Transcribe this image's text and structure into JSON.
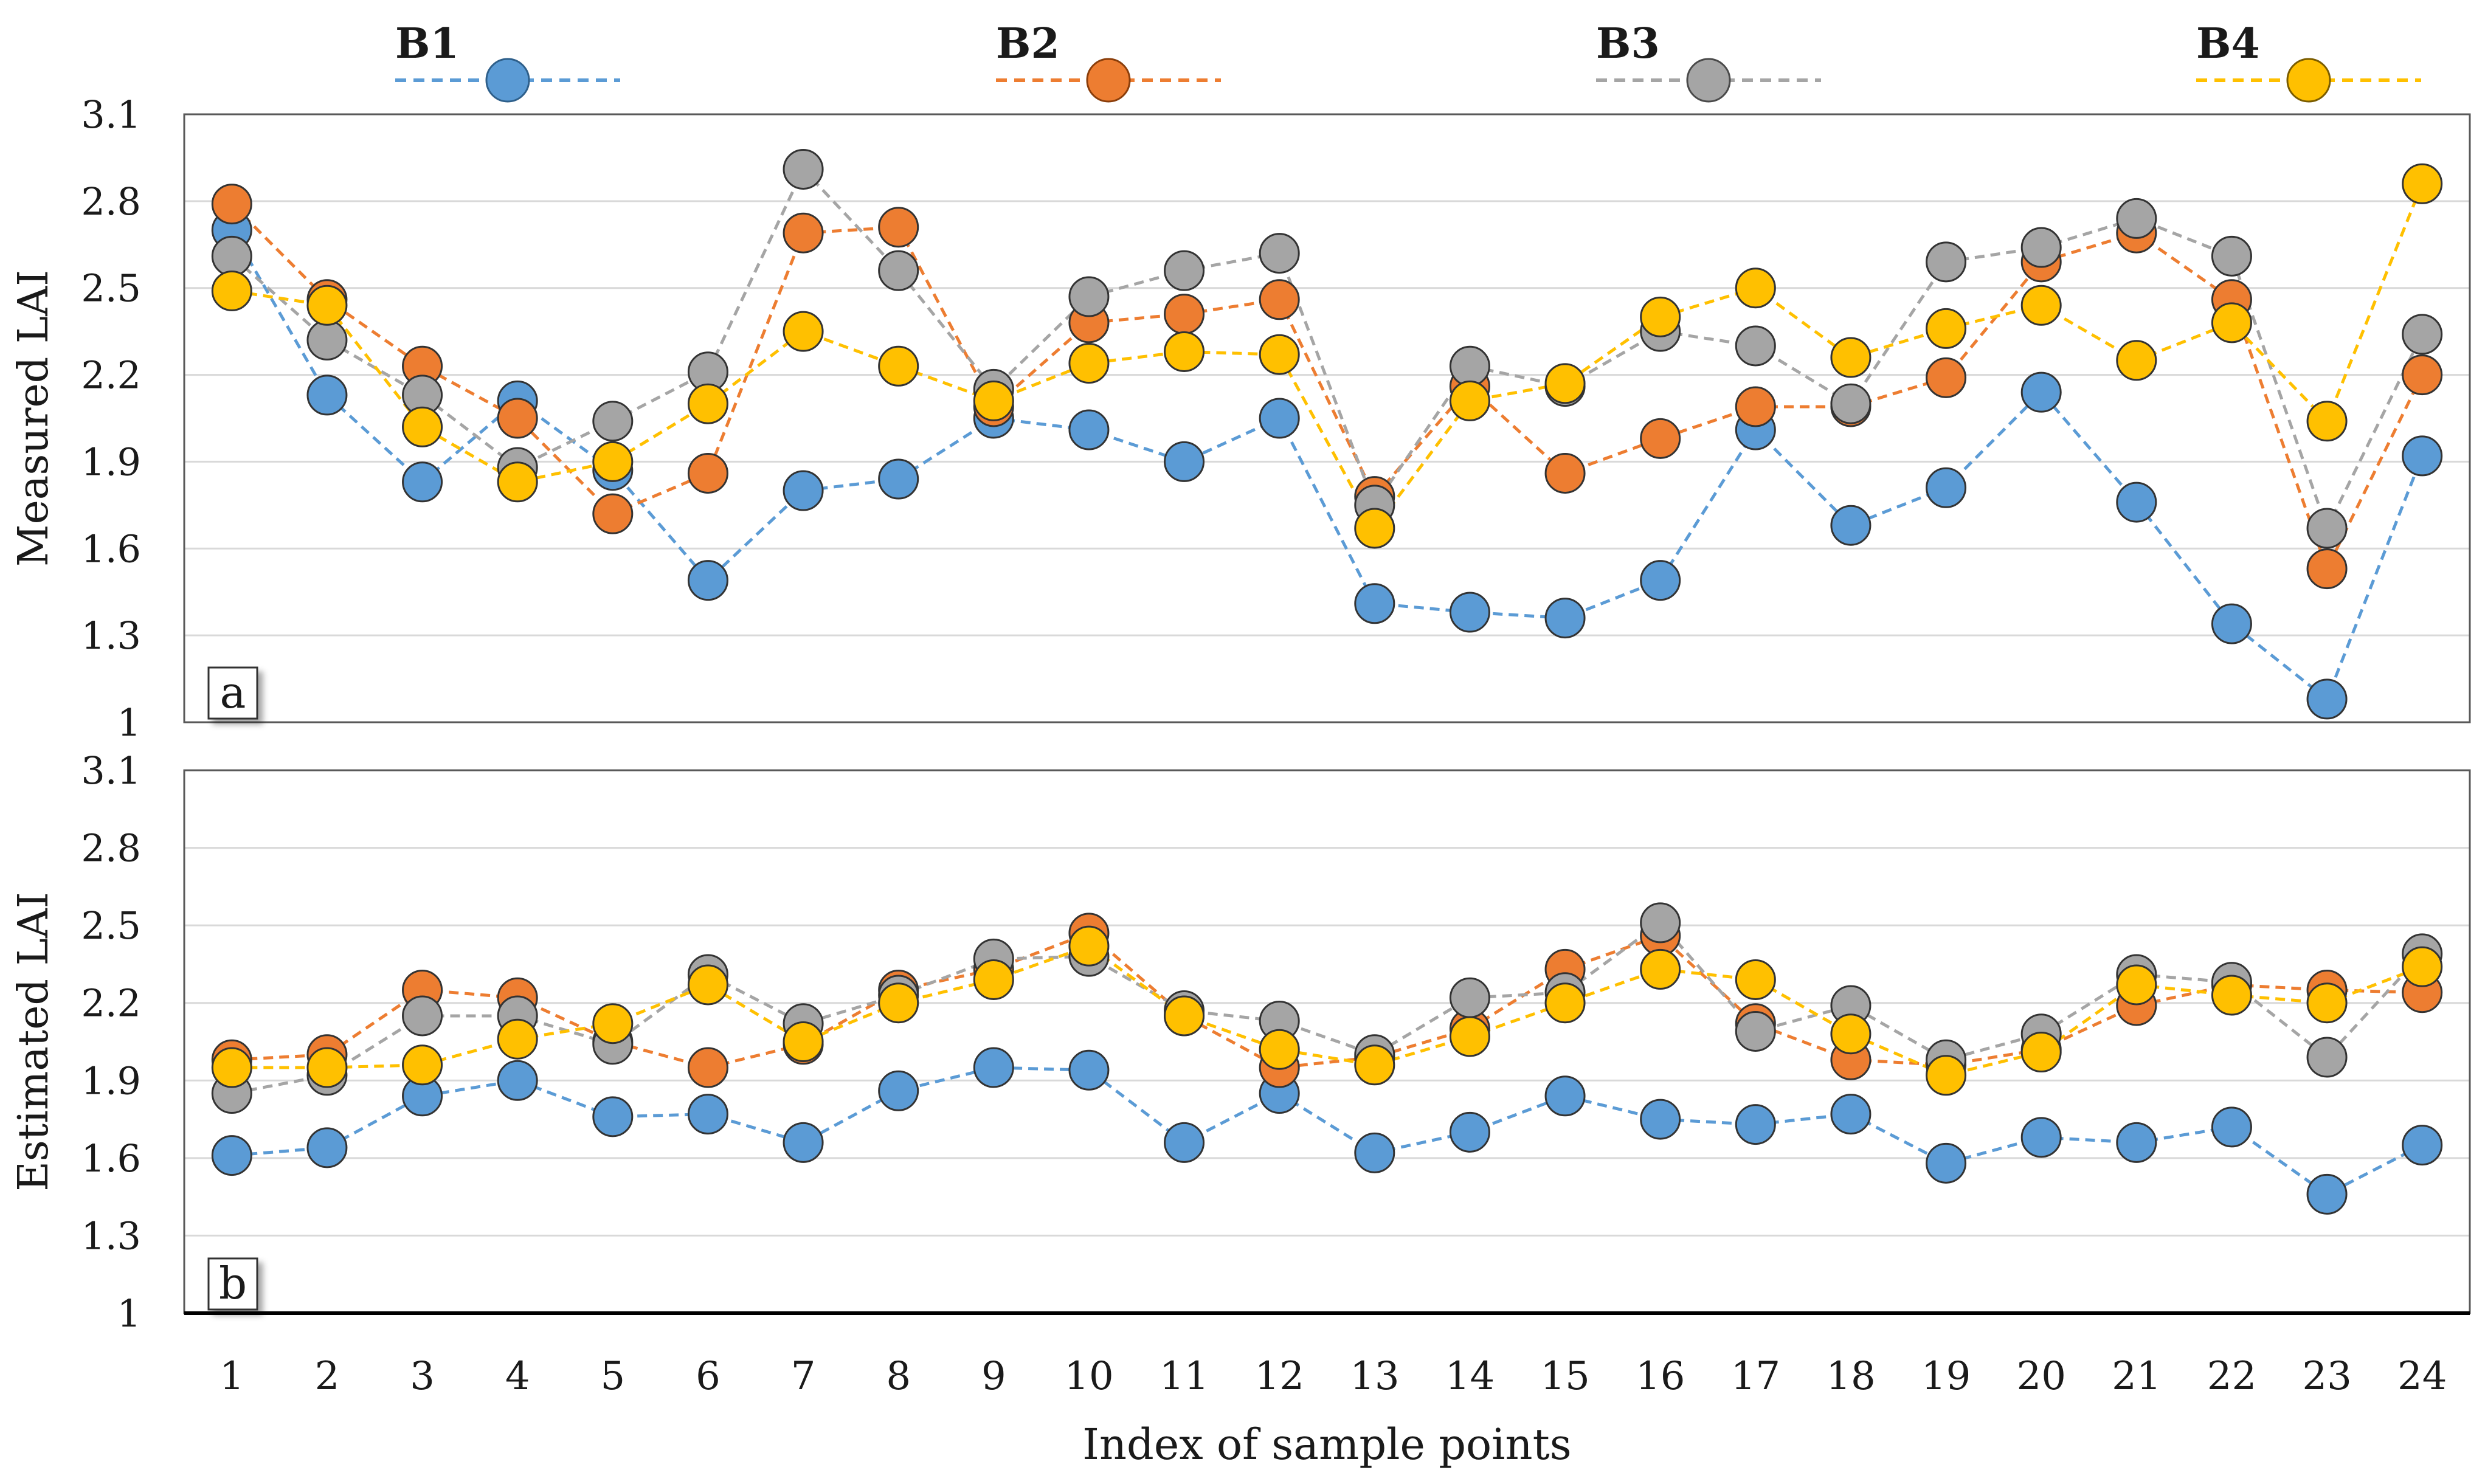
{
  "legend": [
    {
      "label": "B1",
      "color": "#5B9BD5",
      "marker_stroke": "#2E5F8A"
    },
    {
      "label": "B2",
      "color": "#ED7D31",
      "marker_stroke": "#8A3E0B"
    },
    {
      "label": "B3",
      "color": "#A5A5A5",
      "marker_stroke": "#4A4A4A"
    },
    {
      "label": "B4",
      "color": "#FFC000",
      "marker_stroke": "#7A5C00"
    }
  ],
  "xlabel": "Index of sample points",
  "chart_data": [
    {
      "type": "line",
      "panel_label": "a",
      "ylabel": "Measured LAI",
      "ylim": [
        1,
        3.1
      ],
      "yticks": [
        "1",
        "1.3",
        "1.6",
        "1.9",
        "2.2",
        "2.5",
        "2.8",
        "3.1"
      ],
      "categories": [
        1,
        2,
        3,
        4,
        5,
        6,
        7,
        8,
        9,
        10,
        11,
        12,
        13,
        14,
        15,
        16,
        17,
        18,
        19,
        20,
        21,
        22,
        23,
        24
      ],
      "series": [
        {
          "name": "B1",
          "values": [
            2.7,
            2.13,
            1.83,
            2.11,
            1.87,
            1.49,
            1.8,
            1.84,
            2.05,
            2.01,
            1.9,
            2.05,
            1.41,
            1.38,
            1.36,
            1.49,
            2.01,
            1.68,
            1.81,
            2.14,
            1.76,
            1.34,
            1.08,
            1.92
          ]
        },
        {
          "name": "B2",
          "values": [
            2.79,
            2.46,
            2.23,
            2.05,
            1.72,
            1.86,
            2.69,
            2.71,
            2.09,
            2.38,
            2.41,
            2.46,
            1.78,
            2.16,
            1.86,
            1.98,
            2.09,
            2.09,
            2.19,
            2.59,
            2.69,
            2.46,
            1.53,
            2.2
          ]
        },
        {
          "name": "B3",
          "values": [
            2.61,
            2.32,
            2.13,
            1.88,
            2.04,
            2.21,
            2.91,
            2.56,
            2.15,
            2.47,
            2.56,
            2.62,
            1.75,
            2.23,
            2.16,
            2.35,
            2.3,
            2.1,
            2.59,
            2.64,
            2.74,
            2.61,
            1.67,
            2.34
          ]
        },
        {
          "name": "B4",
          "values": [
            2.49,
            2.44,
            2.02,
            1.83,
            1.9,
            2.1,
            2.35,
            2.23,
            2.11,
            2.24,
            2.28,
            2.27,
            1.67,
            2.11,
            2.17,
            2.4,
            2.5,
            2.26,
            2.36,
            2.44,
            2.25,
            2.38,
            2.04,
            2.86
          ]
        }
      ],
      "grid": true
    },
    {
      "type": "line",
      "panel_label": "b",
      "ylabel": "Estimated LAI",
      "ylim": [
        1,
        3.1
      ],
      "yticks": [
        "1",
        "1.3",
        "1.6",
        "1.9",
        "2.2",
        "2.5",
        "2.8",
        "3.1"
      ],
      "categories": [
        1,
        2,
        3,
        4,
        5,
        6,
        7,
        8,
        9,
        10,
        11,
        12,
        13,
        14,
        15,
        16,
        17,
        18,
        19,
        20,
        21,
        22,
        23,
        24
      ],
      "series": [
        {
          "name": "B1",
          "values": [
            1.61,
            1.64,
            1.84,
            1.9,
            1.76,
            1.77,
            1.66,
            1.86,
            1.95,
            1.94,
            1.66,
            1.85,
            1.62,
            1.7,
            1.84,
            1.75,
            1.73,
            1.77,
            1.58,
            1.68,
            1.66,
            1.72,
            1.46,
            1.65
          ]
        },
        {
          "name": "B2",
          "values": [
            1.98,
            2.0,
            2.25,
            2.22,
            2.05,
            1.95,
            2.04,
            2.25,
            2.33,
            2.47,
            2.15,
            1.95,
            1.99,
            2.1,
            2.33,
            2.46,
            2.12,
            1.98,
            1.96,
            2.02,
            2.19,
            2.27,
            2.25,
            2.24
          ]
        },
        {
          "name": "B3",
          "values": [
            1.85,
            1.92,
            2.15,
            2.15,
            2.04,
            2.31,
            2.12,
            2.23,
            2.37,
            2.38,
            2.17,
            2.13,
            2.0,
            2.22,
            2.24,
            2.51,
            2.09,
            2.19,
            1.98,
            2.08,
            2.31,
            2.28,
            1.99,
            2.39
          ]
        },
        {
          "name": "B4",
          "values": [
            1.95,
            1.95,
            1.96,
            2.06,
            2.12,
            2.27,
            2.05,
            2.2,
            2.29,
            2.42,
            2.15,
            2.02,
            1.96,
            2.07,
            2.2,
            2.33,
            2.29,
            2.08,
            1.92,
            2.01,
            2.27,
            2.23,
            2.2,
            2.34
          ]
        }
      ],
      "grid": true
    }
  ]
}
